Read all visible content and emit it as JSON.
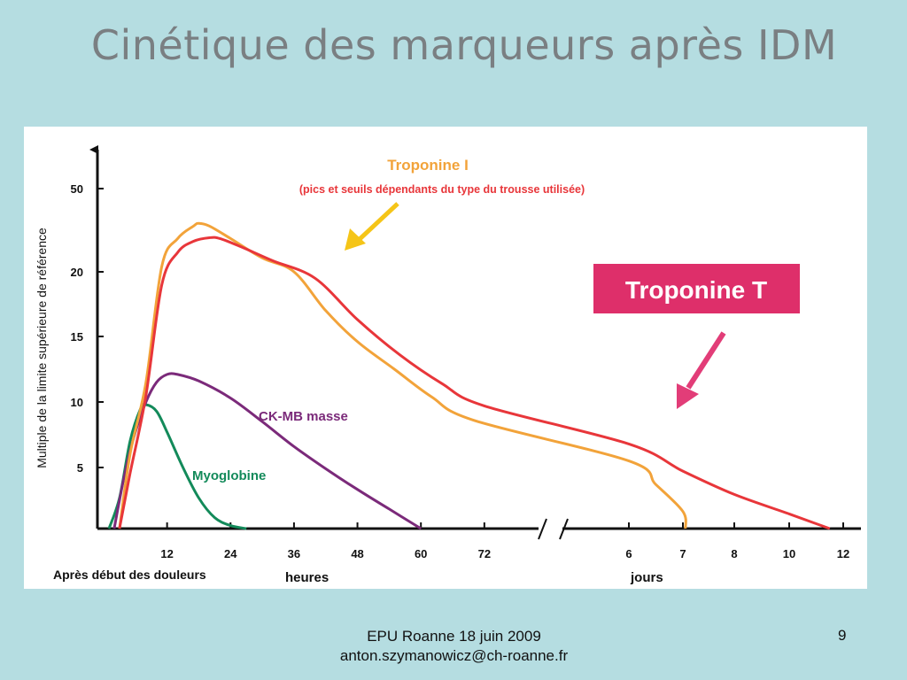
{
  "slide": {
    "title": "Cinétique des marqueurs après IDM",
    "footer_line1": "EPU Roanne 18 juin 2009",
    "footer_line2": "anton.szymanowicz@ch-roanne.fr",
    "page_number": "9"
  },
  "chart_data": {
    "type": "line",
    "ylabel": "Multiple de la limite supérieure de référence",
    "x_caption": "Après début des douleurs",
    "x_unit_hours": "heures",
    "x_unit_days": "jours",
    "x_ticks_hours": [
      "12",
      "24",
      "36",
      "48",
      "60",
      "72"
    ],
    "x_ticks_days": [
      "6",
      "7",
      "8",
      "10",
      "12"
    ],
    "y_ticks": [
      "5",
      "10",
      "15",
      "20",
      "50"
    ],
    "annotations": {
      "troponine_i_title": "Troponine  I",
      "troponine_i_note": "(pics et seuils dépendants du type du trousse utilisée)",
      "troponine_t_box": "Troponine  T"
    },
    "colors": {
      "troponine_i": "#f2a33a",
      "troponine_t": "#e8363a",
      "ck_mb": "#7b2a7a",
      "myoglobine": "#138a5a",
      "troponine_t_box": "#de2f6a",
      "arrow_i": "#f5c518",
      "arrow_t": "#e23d78"
    },
    "series": [
      {
        "name": "Myoglobine",
        "color_key": "myoglobine",
        "points": [
          [
            1,
            0
          ],
          [
            3,
            2.5
          ],
          [
            5,
            7
          ],
          [
            7,
            9.5
          ],
          [
            8,
            9.8
          ],
          [
            10,
            9.3
          ],
          [
            12,
            7.7
          ],
          [
            15,
            5
          ],
          [
            18,
            2.5
          ],
          [
            21,
            0.9
          ],
          [
            24,
            0.25
          ],
          [
            27,
            0
          ]
        ]
      },
      {
        "name": "CK-MB masse",
        "color_key": "ck_mb",
        "points": [
          [
            2,
            0
          ],
          [
            4,
            4.5
          ],
          [
            6,
            7.7
          ],
          [
            8,
            10
          ],
          [
            10,
            11.5
          ],
          [
            12,
            12.1
          ],
          [
            14,
            12.1
          ],
          [
            18,
            11.6
          ],
          [
            24,
            10.3
          ],
          [
            30,
            8.5
          ],
          [
            36,
            6.6
          ],
          [
            42,
            4.9
          ],
          [
            48,
            3.2
          ],
          [
            54,
            1.6
          ],
          [
            60,
            0
          ]
        ]
      },
      {
        "name": "Troponine I",
        "color_key": "troponine_i",
        "points": [
          [
            3,
            0
          ],
          [
            5,
            6
          ],
          [
            8,
            11.5
          ],
          [
            11,
            22
          ],
          [
            14,
            32
          ],
          [
            17,
            36.5
          ],
          [
            18,
            37.5
          ],
          [
            20,
            36.5
          ],
          [
            24,
            32
          ],
          [
            30,
            25
          ],
          [
            36,
            20
          ],
          [
            42,
            17
          ],
          [
            48,
            14.6
          ],
          [
            55,
            12.5
          ],
          [
            62,
            10.4
          ],
          [
            70,
            8.6
          ],
          [
            "d6",
            5.5
          ],
          [
            "d6.5",
            3.6
          ],
          [
            "d7",
            1.4
          ],
          [
            "d7.05",
            0
          ]
        ]
      },
      {
        "name": "Troponine T",
        "color_key": "troponine_t",
        "points": [
          [
            3,
            0
          ],
          [
            5,
            4.5
          ],
          [
            8,
            10.5
          ],
          [
            11,
            19
          ],
          [
            14,
            27
          ],
          [
            17,
            31
          ],
          [
            20,
            32.3
          ],
          [
            22,
            32
          ],
          [
            26,
            29
          ],
          [
            32,
            24
          ],
          [
            40,
            19.5
          ],
          [
            48,
            16.3
          ],
          [
            56,
            13.6
          ],
          [
            64,
            11.4
          ],
          [
            72,
            9.7
          ],
          [
            "d6",
            6.8
          ],
          [
            "d7",
            4.7
          ],
          [
            "d8",
            2.8
          ],
          [
            "d10",
            1.2
          ],
          [
            "d11",
            0.4
          ],
          [
            "d11.5",
            0
          ]
        ]
      }
    ]
  }
}
